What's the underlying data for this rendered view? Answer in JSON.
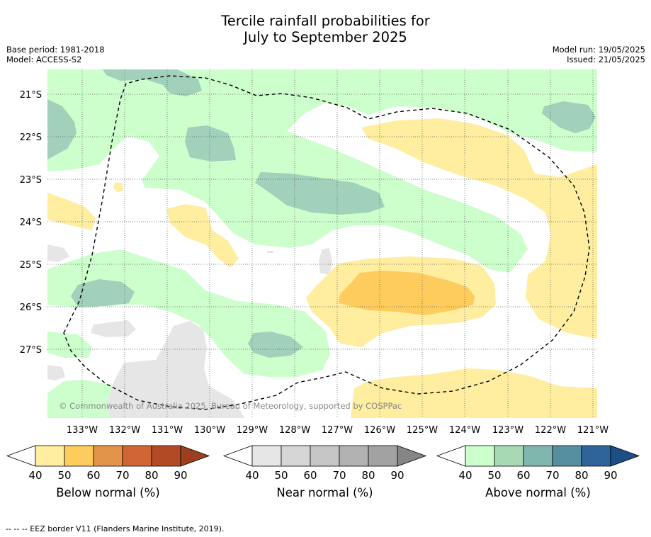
{
  "title": {
    "line1": "Tercile rainfall probabilities for",
    "line2": "July to September 2025"
  },
  "meta": {
    "base_period": "Base period: 1981-2018",
    "model": "Model: ACCESS-S2",
    "model_run": "Model run: 19/05/2025",
    "issued": "Issued: 21/05/2025"
  },
  "map": {
    "lat_labels": [
      "21°S",
      "22°S",
      "23°S",
      "24°S",
      "25°S",
      "26°S",
      "27°S"
    ],
    "lon_labels": [
      "133°W",
      "132°W",
      "131°W",
      "130°W",
      "129°W",
      "128°W",
      "127°W",
      "126°W",
      "125°W",
      "124°W",
      "123°W",
      "122°W",
      "121°W"
    ],
    "copyright": "© Commonwealth of Australia 2025, Bureau of Meteorology, supported by COSPPac",
    "border_label": "EEZ border",
    "colors": {
      "below_50": "#FFEDA0",
      "below_60": "#FECC5C",
      "near_50": "#E6E6E6",
      "above_50": "#CCFFCC",
      "above_60": "#A1D1BB"
    }
  },
  "colorbars": [
    {
      "title": "Below normal (%)",
      "ticks": [
        "40",
        "50",
        "60",
        "70",
        "80",
        "90"
      ],
      "colors": [
        "#FFEDA0",
        "#FECC5C",
        "#E1944A",
        "#CF6633",
        "#B24A26"
      ],
      "extend_color": "#9B3F1F"
    },
    {
      "title": "Near normal (%)",
      "ticks": [
        "40",
        "50",
        "60",
        "70",
        "80",
        "90"
      ],
      "colors": [
        "#E6E6E6",
        "#D6D6D6",
        "#C6C6C6",
        "#B2B2B2",
        "#A2A2A2"
      ],
      "extend_color": "#858585"
    },
    {
      "title": "Above normal (%)",
      "ticks": [
        "40",
        "50",
        "60",
        "70",
        "80",
        "90"
      ],
      "colors": [
        "#CCFFCC",
        "#A7D9B4",
        "#7FB6AE",
        "#568F9E",
        "#2E6499"
      ],
      "extend_color": "#1B4F86"
    }
  ],
  "footnote": "--  --  -- EEZ border V11 (Flanders Marine Institute, 2019)."
}
